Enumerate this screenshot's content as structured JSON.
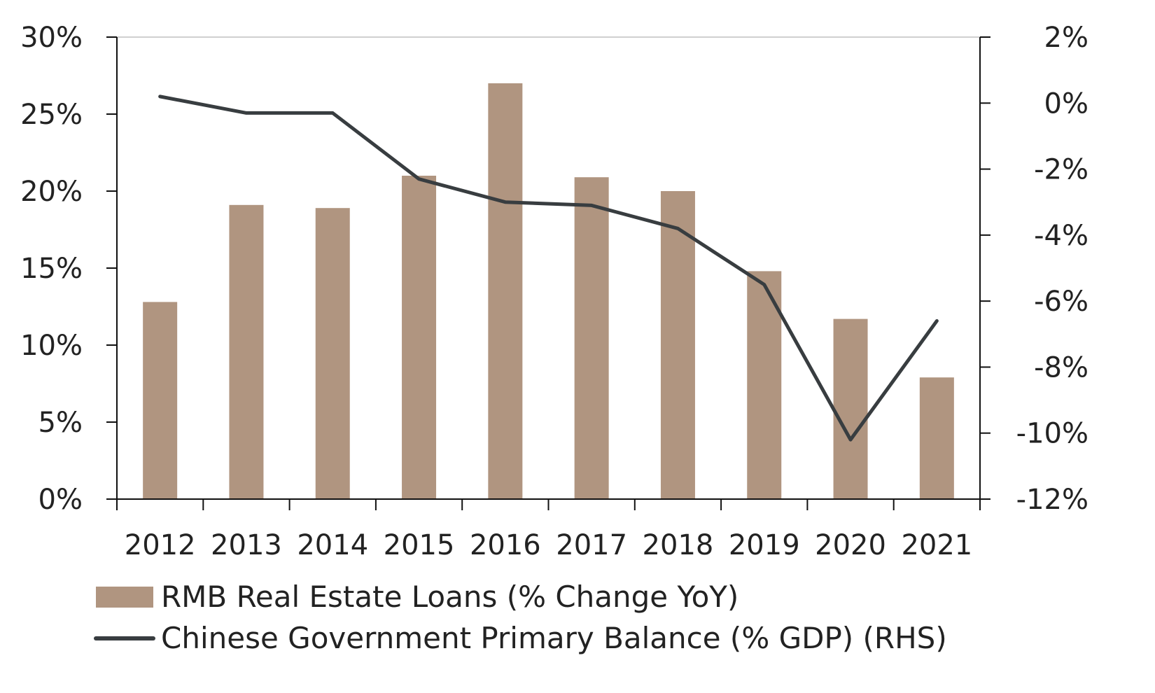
{
  "chart_data": {
    "type": "bar+line",
    "categories": [
      "2012",
      "2013",
      "2014",
      "2015",
      "2016",
      "2017",
      "2018",
      "2019",
      "2020",
      "2021"
    ],
    "series": [
      {
        "name": "RMB Real Estate Loans (% Change YoY)",
        "type": "bar",
        "axis": "left",
        "color": "#b09580",
        "values": [
          12.8,
          19.1,
          18.9,
          21.0,
          27.0,
          20.9,
          20.0,
          14.8,
          11.7,
          7.9
        ]
      },
      {
        "name": "Chinese Government Primary Balance (% GDP) (RHS)",
        "type": "line",
        "axis": "right",
        "color": "#383d40",
        "values": [
          0.2,
          -0.3,
          -0.3,
          -2.3,
          -3.0,
          -3.1,
          -3.8,
          -5.5,
          -10.2,
          -6.6
        ]
      }
    ],
    "left_axis": {
      "ylim": [
        0,
        30
      ],
      "ticks": [
        "0%",
        "5%",
        "10%",
        "15%",
        "20%",
        "25%",
        "30%"
      ],
      "tick_values": [
        0,
        5,
        10,
        15,
        20,
        25,
        30
      ]
    },
    "right_axis": {
      "ylim": [
        -12,
        2
      ],
      "ticks": [
        "-12%",
        "-10%",
        "-8%",
        "-6%",
        "-4%",
        "-2%",
        "0%",
        "2%"
      ],
      "tick_values": [
        -12,
        -10,
        -8,
        -6,
        -4,
        -2,
        0,
        2
      ]
    },
    "legend_placement": "bottom-left",
    "title": "",
    "xlabel": "",
    "ylabel": ""
  }
}
